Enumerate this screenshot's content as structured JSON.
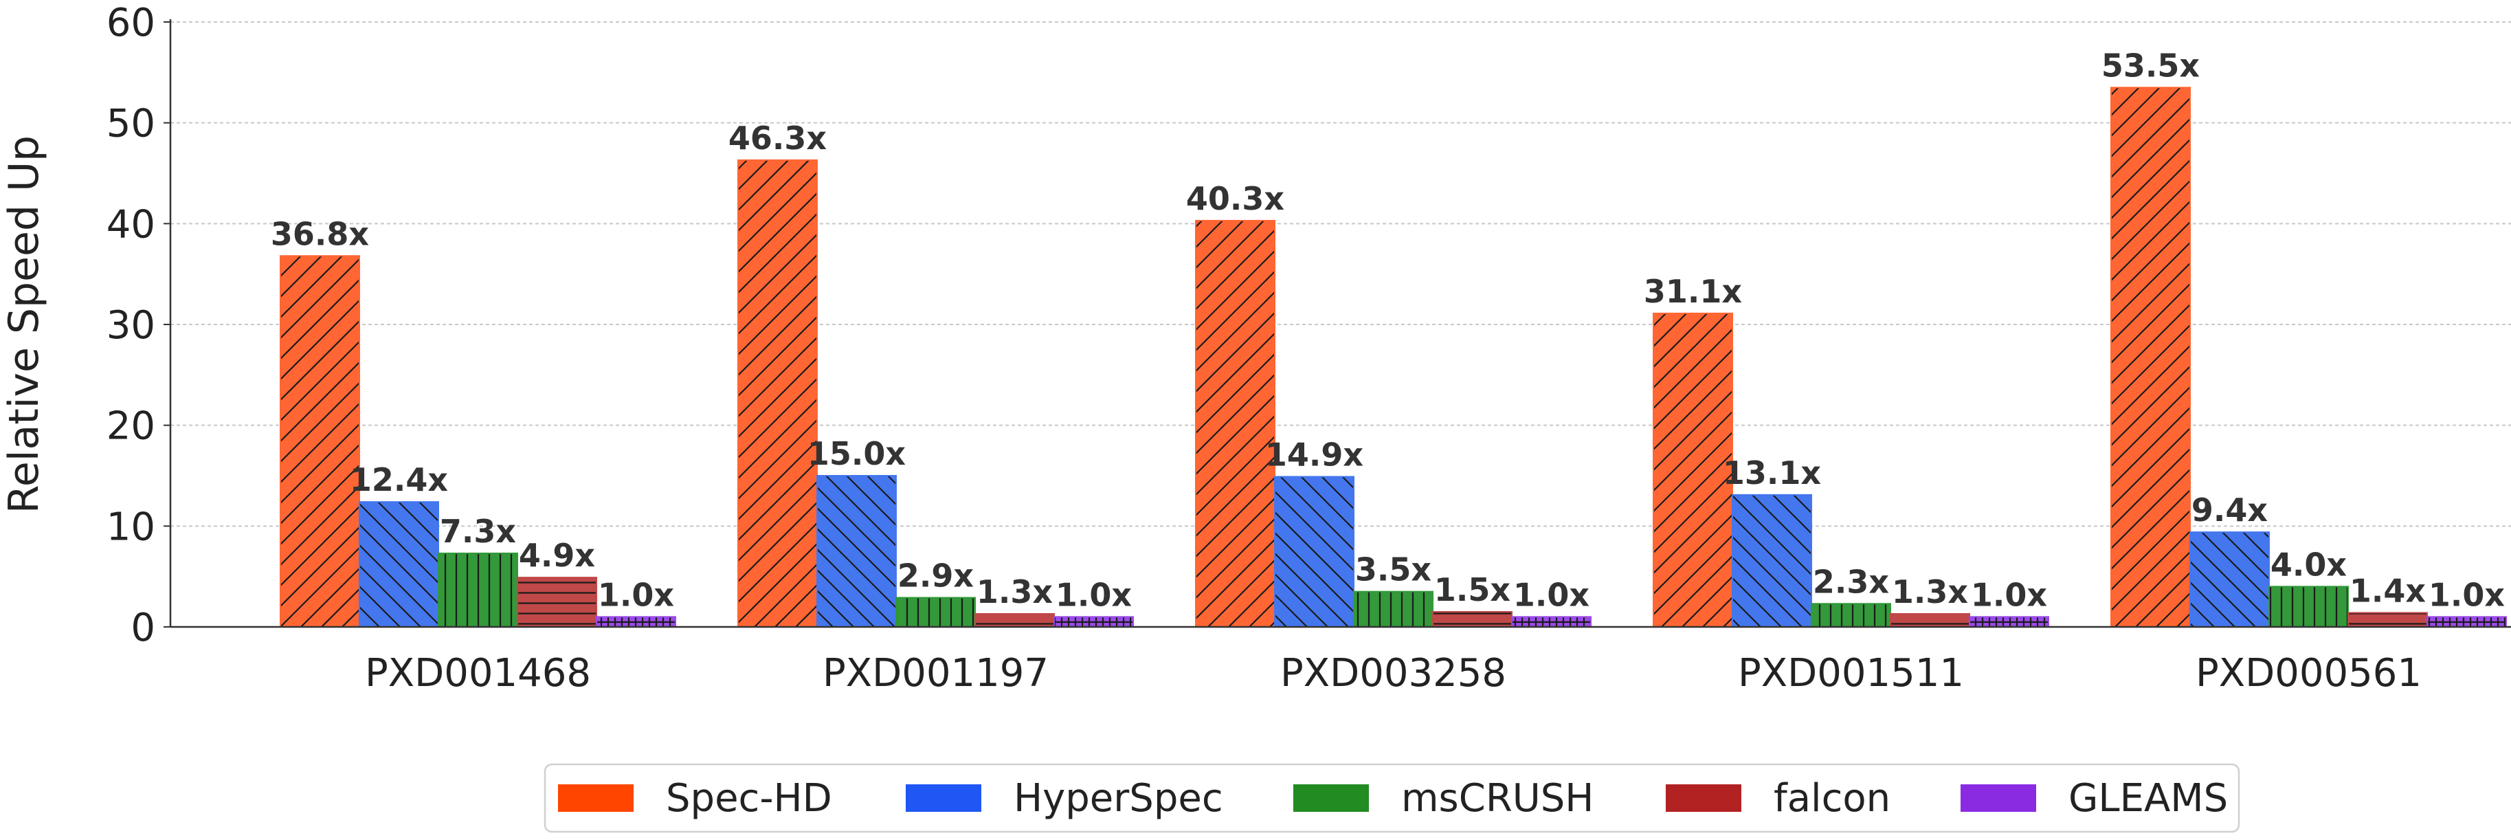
{
  "chart_data": {
    "type": "bar",
    "title": "",
    "xlabel": "",
    "ylabel": "Relative Speed Up",
    "ylim": [
      0,
      60
    ],
    "yticks": [
      0,
      10,
      20,
      30,
      40,
      50,
      60
    ],
    "grid": true,
    "legend_position": "bottom-center",
    "categories": [
      "PXD001468",
      "PXD001197",
      "PXD003258",
      "PXD001511",
      "PXD000561"
    ],
    "series": [
      {
        "name": "Spec-HD",
        "values": [
          36.8,
          46.3,
          40.3,
          31.1,
          53.5
        ],
        "labels": [
          "36.8x",
          "46.3x",
          "40.3x",
          "31.1x",
          "53.5x"
        ],
        "color": "#FF6633",
        "legend_color": "#FF4500",
        "hatch": "diagonal-up"
      },
      {
        "name": "HyperSpec",
        "values": [
          12.4,
          15.0,
          14.9,
          13.1,
          9.4
        ],
        "labels": [
          "12.4x",
          "15.0x",
          "14.9x",
          "13.1x",
          "9.4x"
        ],
        "color": "#4477EE",
        "legend_color": "#1F57F5",
        "hatch": "diagonal-down"
      },
      {
        "name": "msCRUSH",
        "values": [
          7.3,
          2.9,
          3.5,
          2.3,
          4.0
        ],
        "labels": [
          "7.3x",
          "2.9x",
          "3.5x",
          "2.3x",
          "4.0x"
        ],
        "color": "#33993A",
        "legend_color": "#228B22",
        "hatch": "vertical"
      },
      {
        "name": "falcon",
        "values": [
          4.9,
          1.3,
          1.5,
          1.3,
          1.4
        ],
        "labels": [
          "4.9x",
          "1.3x",
          "1.5x",
          "1.3x",
          "1.4x"
        ],
        "color": "#C04848",
        "legend_color": "#B22222",
        "hatch": "horizontal"
      },
      {
        "name": "GLEAMS",
        "values": [
          1.0,
          1.0,
          1.0,
          1.0,
          1.0
        ],
        "labels": [
          "1.0x",
          "1.0x",
          "1.0x",
          "1.0x",
          "1.0x"
        ],
        "color": "#9A4AE6",
        "legend_color": "#8A2BE2",
        "hatch": "grid"
      }
    ]
  }
}
